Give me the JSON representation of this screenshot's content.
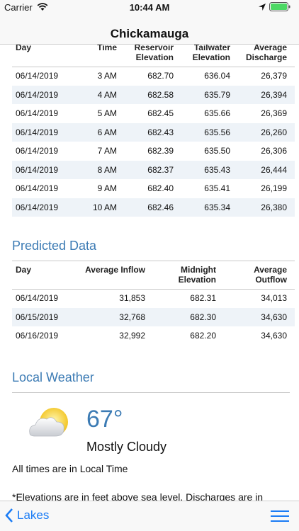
{
  "status_bar": {
    "carrier": "Carrier",
    "time": "10:44 AM"
  },
  "title": "Chickamauga",
  "observed_table": {
    "headers": [
      "Day",
      "Time",
      "Reservoir Elevation",
      "Tailwater Elevation",
      "Average Discharge"
    ],
    "rows": [
      [
        "06/14/2019",
        "3 AM",
        "682.70",
        "636.04",
        "26,379"
      ],
      [
        "06/14/2019",
        "4 AM",
        "682.58",
        "635.79",
        "26,394"
      ],
      [
        "06/14/2019",
        "5 AM",
        "682.45",
        "635.66",
        "26,369"
      ],
      [
        "06/14/2019",
        "6 AM",
        "682.43",
        "635.56",
        "26,260"
      ],
      [
        "06/14/2019",
        "7 AM",
        "682.39",
        "635.50",
        "26,306"
      ],
      [
        "06/14/2019",
        "8 AM",
        "682.37",
        "635.43",
        "26,444"
      ],
      [
        "06/14/2019",
        "9 AM",
        "682.40",
        "635.41",
        "26,199"
      ],
      [
        "06/14/2019",
        "10 AM",
        "682.46",
        "635.34",
        "26,380"
      ]
    ]
  },
  "predicted": {
    "heading": "Predicted Data",
    "headers": [
      "Day",
      "Average Inflow",
      "Midnight Elevation",
      "Average Outflow"
    ],
    "rows": [
      [
        "06/14/2019",
        "31,853",
        "682.31",
        "34,013"
      ],
      [
        "06/15/2019",
        "32,768",
        "682.30",
        "34,630"
      ],
      [
        "06/16/2019",
        "32,992",
        "682.20",
        "34,630"
      ]
    ]
  },
  "weather": {
    "heading": "Local Weather",
    "temperature": "67°",
    "condition": "Mostly Cloudy"
  },
  "notes": [
    "All times are in Local Time",
    "*Elevations are in feet above sea level. Discharges are in"
  ],
  "toolbar": {
    "back": "Lakes"
  }
}
